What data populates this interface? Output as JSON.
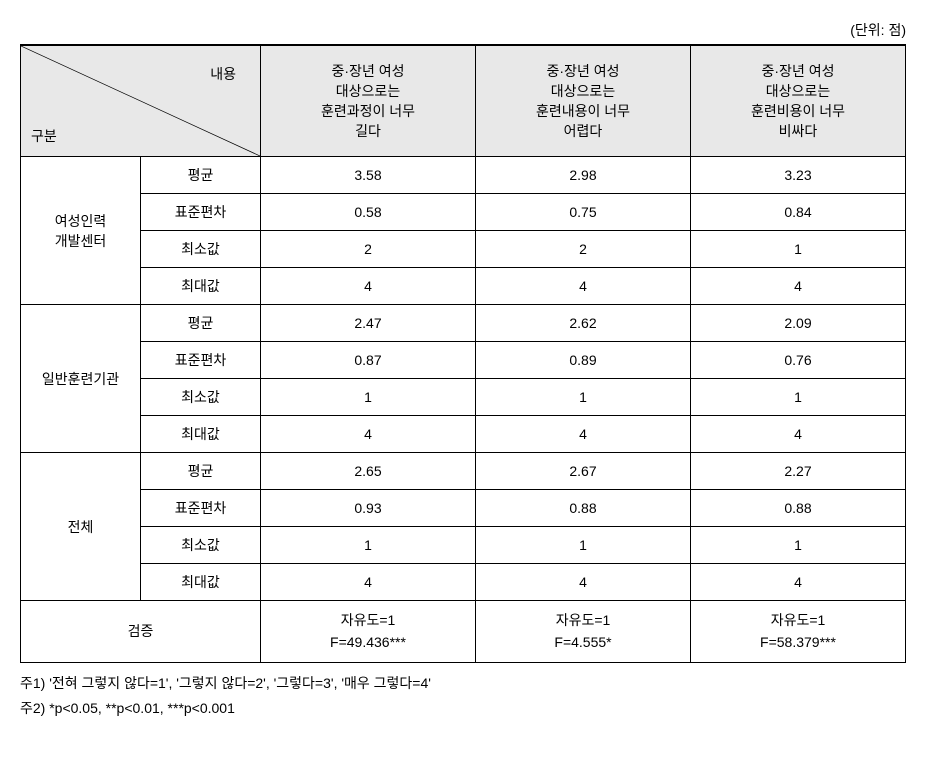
{
  "unit": "(단위: 점)",
  "header": {
    "diag_top": "내용",
    "diag_bottom": "구분",
    "col1": "중·장년 여성\n대상으로는\n훈련과정이 너무\n길다",
    "col2": "중·장년 여성\n대상으로는\n훈련내용이 너무\n어렵다",
    "col3": "중·장년 여성\n대상으로는\n훈련비용이 너무\n비싸다"
  },
  "stat_labels": {
    "mean": "평균",
    "sd": "표준편차",
    "min": "최소값",
    "max": "최대값"
  },
  "groups": [
    {
      "name": "여성인력\n개발센터",
      "rows": {
        "mean": [
          "3.58",
          "2.98",
          "3.23"
        ],
        "sd": [
          "0.58",
          "0.75",
          "0.84"
        ],
        "min": [
          "2",
          "2",
          "1"
        ],
        "max": [
          "4",
          "4",
          "4"
        ]
      }
    },
    {
      "name": "일반훈련기관",
      "rows": {
        "mean": [
          "2.47",
          "2.62",
          "2.09"
        ],
        "sd": [
          "0.87",
          "0.89",
          "0.76"
        ],
        "min": [
          "1",
          "1",
          "1"
        ],
        "max": [
          "4",
          "4",
          "4"
        ]
      }
    },
    {
      "name": "전체",
      "rows": {
        "mean": [
          "2.65",
          "2.67",
          "2.27"
        ],
        "sd": [
          "0.93",
          "0.88",
          "0.88"
        ],
        "min": [
          "1",
          "1",
          "1"
        ],
        "max": [
          "4",
          "4",
          "4"
        ]
      }
    }
  ],
  "test": {
    "label": "검증",
    "cells": [
      "자유도=1\nF=49.436***",
      "자유도=1\nF=4.555*",
      "자유도=1\nF=58.379***"
    ]
  },
  "footnotes": {
    "n1": "주1) '전혀 그렇지 않다=1', '그렇지 않다=2', '그렇다=3', '매우 그렇다=4'",
    "n2": "주2) *p<0.05, **p<0.01, ***p<0.001"
  }
}
